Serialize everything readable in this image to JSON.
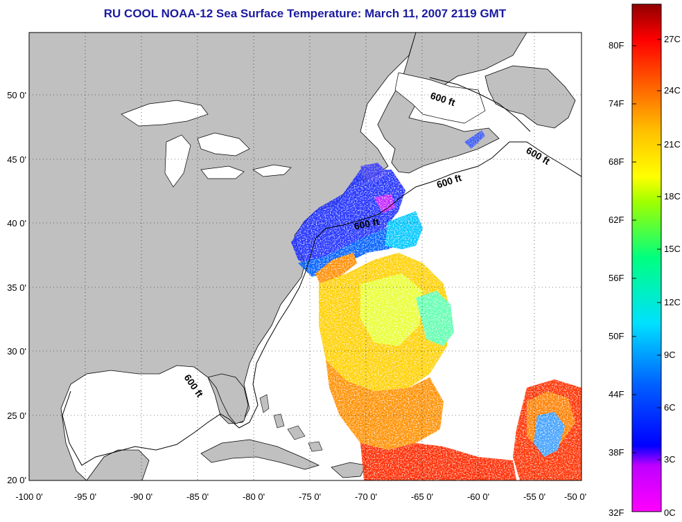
{
  "title": "RU COOL  NOAA-12  Sea Surface Temperature:  March 11, 2007 2119 GMT",
  "map": {
    "lon_range": [
      -100,
      -50
    ],
    "lat_range": [
      20,
      52
    ],
    "lon_ticks": [
      "-100 0'",
      "-95 0'",
      "-90 0'",
      "-85 0'",
      "-80 0'",
      "-75 0'",
      "-70 0'",
      "-65 0'",
      "-60 0'",
      "-55 0'",
      "-50 0'"
    ],
    "lat_ticks": [
      "20 0'",
      "25 0'",
      "30 0'",
      "35 0'",
      "40 0'",
      "45 0'",
      "50 0'"
    ],
    "grid": "dotted",
    "land_color": "#c0c0c0",
    "ocean_color": "#ffffff",
    "contour_labels": [
      "600 ft",
      "600 ft",
      "600 ft",
      "600 ft",
      "600 ft"
    ]
  },
  "colorbar": {
    "fahrenheit_labels": [
      "80F",
      "74F",
      "68F",
      "62F",
      "56F",
      "50F",
      "44F",
      "38F",
      "32F"
    ],
    "celsius_labels": [
      "27C",
      "24C",
      "21C",
      "18C",
      "15C",
      "12C",
      "9C",
      "6C",
      "3C",
      "0C"
    ],
    "colors": [
      "#ff00ff",
      "#8000ff",
      "#0000ff",
      "#0080ff",
      "#00ffff",
      "#00ff80",
      "#80ff00",
      "#ffff00",
      "#ff8000",
      "#ff0000",
      "#800000"
    ]
  }
}
